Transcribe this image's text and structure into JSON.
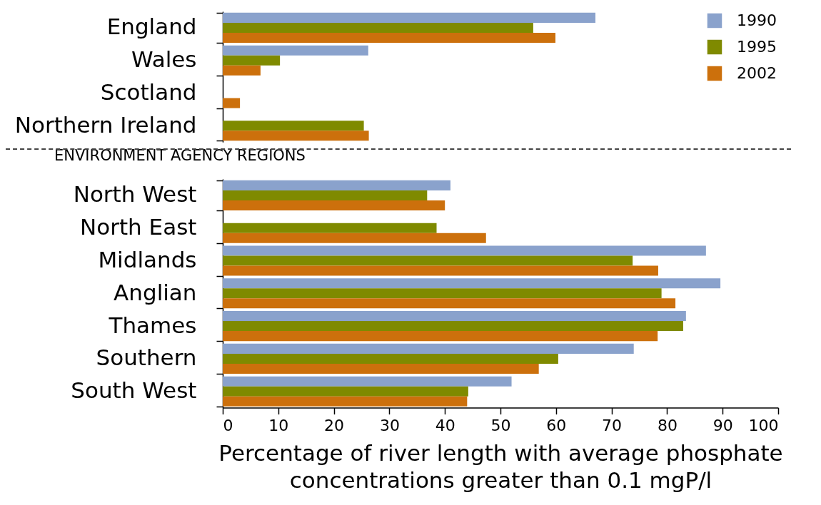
{
  "chart_data": [
    {
      "type": "bar",
      "orientation": "horizontal",
      "categories": [
        "England",
        "Wales",
        "Scotland",
        "Northern Ireland"
      ],
      "series": [
        {
          "name": "1990",
          "color": "#8aa2cc",
          "values": [
            67.1,
            26.2,
            null,
            null
          ]
        },
        {
          "name": "1995",
          "color": "#7f8a00",
          "values": [
            55.9,
            10.3,
            null,
            25.4
          ]
        },
        {
          "name": "2002",
          "color": "#cc700c",
          "values": [
            59.9,
            6.8,
            3.1,
            26.3
          ]
        }
      ],
      "xlim": [
        0,
        100
      ],
      "tick_labels": "y",
      "legend": "top right"
    },
    {
      "type": "bar",
      "orientation": "horizontal",
      "title": "ENVIRONMENT AGENCY REGIONS",
      "categories": [
        "North West",
        "North East",
        "Midlands",
        "Anglian",
        "Thames",
        "Southern",
        "South West"
      ],
      "series": [
        {
          "name": "1990",
          "color": "#8aa2cc",
          "values": [
            41.0,
            null,
            87.0,
            89.6,
            83.4,
            74.0,
            52.0
          ]
        },
        {
          "name": "1995",
          "color": "#7f8a00",
          "values": [
            36.8,
            38.5,
            73.8,
            79.0,
            82.9,
            60.4,
            44.2
          ]
        },
        {
          "name": "2002",
          "color": "#cc700c",
          "values": [
            40.0,
            47.4,
            78.4,
            81.5,
            78.3,
            56.9,
            44.0
          ]
        }
      ],
      "xlim": [
        0,
        100
      ],
      "xticks": [
        0,
        10,
        20,
        30,
        40,
        50,
        60,
        70,
        80,
        90,
        100
      ],
      "xlabel": "Percentage of river length with average phosphate concentrations greater than 0.1 mgP/l"
    }
  ]
}
